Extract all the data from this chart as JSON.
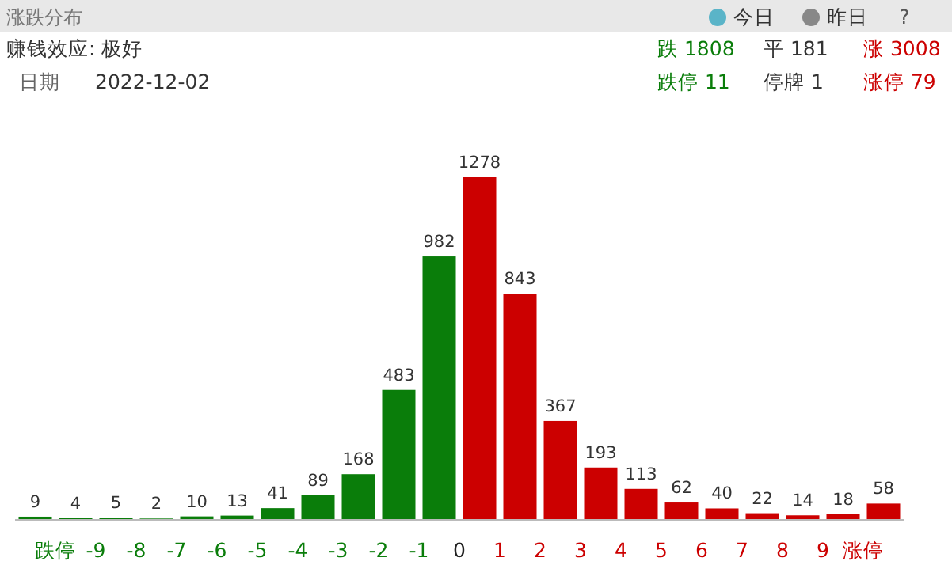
{
  "chart_data": {
    "type": "bar",
    "title": "涨跌分布",
    "categories": [
      null,
      "跌停",
      "-9",
      "-8",
      "-7",
      "-6",
      "-5",
      "-4",
      "-3",
      "-2",
      "-1",
      "0",
      "1",
      "2",
      "3",
      "4",
      "5",
      "6",
      "7",
      "8",
      "9",
      "涨停"
    ],
    "values": [
      9,
      4,
      5,
      2,
      10,
      13,
      41,
      89,
      168,
      483,
      982,
      1278,
      843,
      367,
      193,
      113,
      62,
      40,
      22,
      14,
      18,
      58
    ],
    "colors": [
      "#0a7d0a",
      "#0a7d0a",
      "#0a7d0a",
      "#0a7d0a",
      "#0a7d0a",
      "#0a7d0a",
      "#0a7d0a",
      "#0a7d0a",
      "#0a7d0a",
      "#0a7d0a",
      "#0a7d0a",
      "#cc0000",
      "#cc0000",
      "#cc0000",
      "#cc0000",
      "#cc0000",
      "#cc0000",
      "#cc0000",
      "#cc0000",
      "#cc0000",
      "#cc0000",
      "#cc0000"
    ],
    "data_labels": true,
    "annotations": [
      "赚钱效应: 极好",
      "日期",
      "2022-12-02",
      "跌 1808",
      "平 181",
      "涨 3008",
      "跌停 11",
      "停牌 1",
      "涨停 79",
      "今日",
      "昨日",
      "?"
    ]
  }
}
